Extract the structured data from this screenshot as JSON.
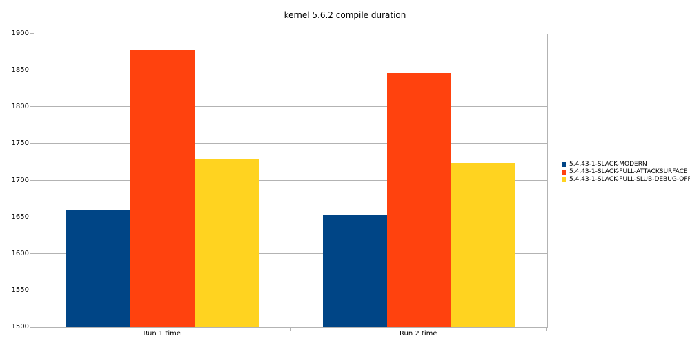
{
  "chart_data": {
    "type": "bar",
    "title": "kernel 5.6.2 compile duration",
    "categories": [
      "Run 1 time",
      "Run 2 time"
    ],
    "series": [
      {
        "name": "5.4.43-1-SLACK-MODERN",
        "color": "#004586",
        "values": [
          1660,
          1653
        ]
      },
      {
        "name": "5.4.43-1-SLACK-FULL-ATTACKSURFACE",
        "color": "#FF420E",
        "values": [
          1878,
          1846
        ]
      },
      {
        "name": "5.4.43-1-SLACK-FULL-SLUB-DEBUG-OFF",
        "color": "#FFD320",
        "values": [
          1729,
          1724
        ]
      }
    ],
    "xlabel": "",
    "ylabel": "",
    "ylim": [
      1500,
      1900
    ],
    "yticks": [
      1500,
      1550,
      1600,
      1650,
      1700,
      1750,
      1800,
      1850,
      1900
    ],
    "grid": "horizontal",
    "legend_position": "right",
    "axis_color": "#b3b3b3",
    "background_color": "#ffffff",
    "text_color": "#000000"
  }
}
